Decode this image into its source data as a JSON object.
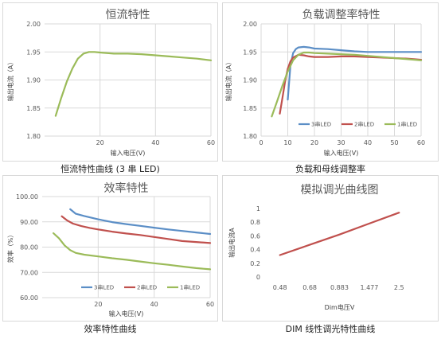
{
  "colors": {
    "blue": "#5b8ec6",
    "red": "#c0504d",
    "green": "#9bbb59",
    "grid": "#d9d9d9"
  },
  "captions": [
    "恒流特性曲线 (3 串 LED)",
    "负载和母线调整率",
    "效率特性曲线",
    "DIM 线性调光特性曲线"
  ],
  "chart_data": [
    {
      "type": "line",
      "title": "恒流特性",
      "xlabel": "输入电压(V)",
      "ylabel": "输出电流（A）",
      "xlim": [
        0,
        60
      ],
      "ylim": [
        1.8,
        2.0
      ],
      "xticks": [
        20,
        40,
        60
      ],
      "yticks": [
        "1.80",
        "1.85",
        "1.90",
        "1.95",
        "2.00"
      ],
      "grid": true,
      "legend": "none",
      "series": [
        {
          "color": "#9bbb59",
          "x": [
            4,
            6,
            8,
            10,
            12,
            14,
            16,
            18,
            20,
            25,
            30,
            35,
            40,
            45,
            50,
            55,
            60
          ],
          "y": [
            1.836,
            1.868,
            1.897,
            1.92,
            1.938,
            1.947,
            1.95,
            1.95,
            1.949,
            1.947,
            1.947,
            1.946,
            1.944,
            1.942,
            1.94,
            1.938,
            1.935
          ]
        }
      ]
    },
    {
      "type": "line",
      "title": "负载调整率特性",
      "xlabel": "输入电压(V)",
      "ylabel": "输出电流（A）",
      "xlim": [
        0,
        60
      ],
      "ylim": [
        1.8,
        2.0
      ],
      "xticks": [
        0,
        10,
        20,
        30,
        40,
        50,
        60
      ],
      "yticks": [
        "1.80",
        "1.85",
        "1.90",
        "1.95",
        "2.00"
      ],
      "grid": true,
      "legend": "bottom-right",
      "series": [
        {
          "name": "3串LED",
          "color": "#5b8ec6",
          "x": [
            10,
            11,
            12,
            13,
            14,
            16,
            18,
            20,
            25,
            30,
            35,
            40,
            45,
            50,
            55,
            60
          ],
          "y": [
            1.865,
            1.925,
            1.948,
            1.955,
            1.958,
            1.959,
            1.958,
            1.956,
            1.955,
            1.953,
            1.951,
            1.95,
            1.95,
            1.95,
            1.95,
            1.95
          ]
        },
        {
          "name": "2串LED",
          "color": "#c0504d",
          "x": [
            7,
            8,
            9,
            10,
            11,
            12,
            14,
            16,
            18,
            20,
            25,
            30,
            35,
            40,
            45,
            50,
            55,
            60
          ],
          "y": [
            1.84,
            1.868,
            1.898,
            1.92,
            1.933,
            1.94,
            1.945,
            1.944,
            1.942,
            1.941,
            1.941,
            1.942,
            1.942,
            1.941,
            1.94,
            1.939,
            1.938,
            1.936
          ]
        },
        {
          "name": "1串LED",
          "color": "#9bbb59",
          "x": [
            4,
            6,
            8,
            10,
            12,
            14,
            16,
            18,
            20,
            25,
            30,
            35,
            40,
            45,
            50,
            55,
            60
          ],
          "y": [
            1.835,
            1.862,
            1.89,
            1.915,
            1.935,
            1.945,
            1.949,
            1.949,
            1.948,
            1.947,
            1.946,
            1.945,
            1.943,
            1.941,
            1.939,
            1.937,
            1.935
          ]
        }
      ]
    },
    {
      "type": "line",
      "title": "效率特性",
      "xlabel": "输入电压(V)",
      "ylabel": "效率（%）",
      "xlim": [
        0,
        60
      ],
      "ylim": [
        60,
        100
      ],
      "xticks": [
        20,
        40,
        60
      ],
      "yticks": [
        "60.00",
        "70.00",
        "80.00",
        "90.00",
        "100.00"
      ],
      "grid": true,
      "legend": "bottom-right",
      "series": [
        {
          "name": "3串LED",
          "color": "#5b8ec6",
          "x": [
            10,
            12,
            15,
            20,
            25,
            30,
            35,
            40,
            45,
            50,
            55,
            60
          ],
          "y": [
            95,
            93.2,
            92.3,
            91,
            89.9,
            89.1,
            88.4,
            87.7,
            87,
            86.4,
            85.8,
            85.2
          ]
        },
        {
          "name": "2串LED",
          "color": "#c0504d",
          "x": [
            7,
            9,
            11,
            14,
            17,
            20,
            25,
            30,
            35,
            40,
            45,
            50,
            55,
            60
          ],
          "y": [
            92.2,
            90.5,
            89.3,
            88.3,
            87.6,
            87,
            86.1,
            85.4,
            84.8,
            84,
            83.2,
            82.4,
            82,
            81.6
          ]
        },
        {
          "name": "1串LED",
          "color": "#9bbb59",
          "x": [
            4,
            6,
            8,
            10,
            12,
            15,
            20,
            25,
            30,
            35,
            40,
            45,
            50,
            55,
            60
          ],
          "y": [
            85.5,
            83.5,
            80.7,
            78.8,
            77.7,
            77,
            76.3,
            75.6,
            75,
            74.3,
            73.6,
            73,
            72.3,
            71.7,
            71.2
          ]
        }
      ]
    },
    {
      "type": "line",
      "title": "模拟调光曲线图",
      "xlabel": "Dim电压V",
      "ylabel": "输出电流A",
      "categories": [
        "0.48",
        "0.68",
        "0.883",
        "1.477",
        "2.5"
      ],
      "ylim": [
        0,
        1
      ],
      "yticks": [
        "0",
        "0.2",
        "0.4",
        "0.6",
        "0.8",
        "1"
      ],
      "grid": false,
      "legend": "none",
      "series": [
        {
          "color": "#c0504d",
          "values": [
            0.32,
            0.47,
            0.62,
            0.78,
            0.94
          ]
        }
      ]
    }
  ]
}
